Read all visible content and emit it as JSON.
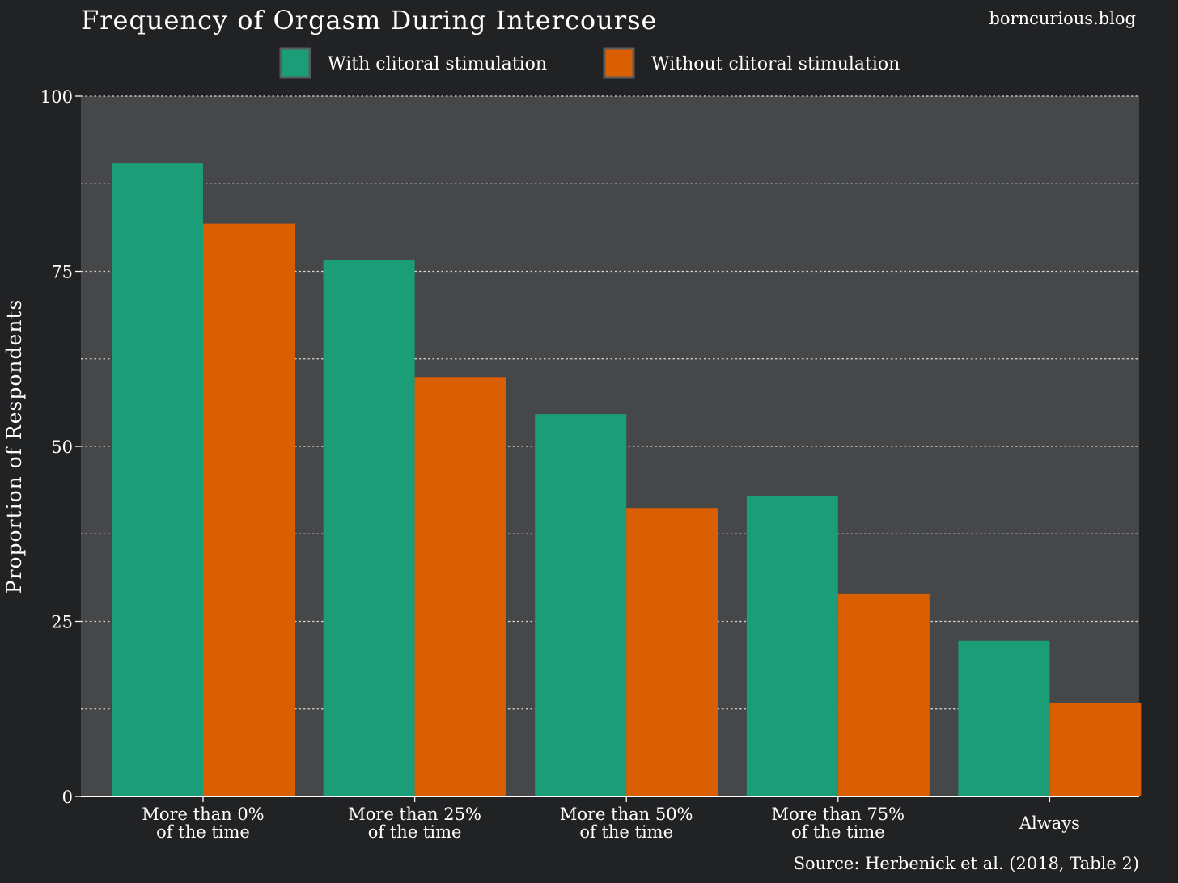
{
  "site": "borncurious.blog",
  "source": "Source: Herbenick et al. (2018, Table 2)",
  "colors": {
    "background": "#212224",
    "panel": "#464749",
    "grid": "#d9d9d9",
    "series_with": "#1b9e77",
    "series_without": "#d95f02"
  },
  "chart_data": {
    "type": "bar",
    "title": "Frequency of Orgasm During Intercourse",
    "xlabel": "",
    "ylabel": "Proportion of Respondents",
    "ylim": [
      0,
      100
    ],
    "yticks": [
      0,
      25,
      50,
      75,
      100
    ],
    "grid": true,
    "legend_position": "top",
    "categories": [
      [
        "More than 0%",
        "of the time"
      ],
      [
        "More than 25%",
        "of the time"
      ],
      [
        "More than 50%",
        "of the time"
      ],
      [
        "More than 75%",
        "of the time"
      ],
      [
        "Always"
      ]
    ],
    "series": [
      {
        "name": "With clitoral stimulation",
        "color": "#1b9e77",
        "values": [
          90.4,
          76.6,
          54.6,
          42.9,
          22.2
        ]
      },
      {
        "name": "Without clitoral stimulation",
        "color": "#d95f02",
        "values": [
          81.8,
          59.9,
          41.2,
          29.0,
          13.4
        ]
      }
    ]
  }
}
